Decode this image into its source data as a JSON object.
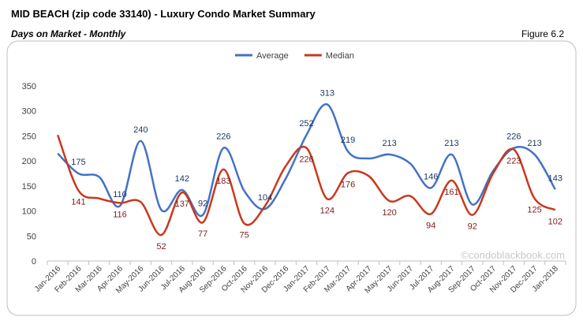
{
  "chart_data": {
    "type": "line",
    "title": "MID BEACH (zip code 33140) - Luxury Condo Market Summary",
    "subtitle": "Days on Market - Monthly",
    "figure_label": "Figure 6.2",
    "watermark": "©condoblackbook.com",
    "categories": [
      "Jan-2016",
      "Feb-2016",
      "Mar-2016",
      "Apr-2016",
      "May-2016",
      "Jun-2016",
      "Jul-2016",
      "Aug-2016",
      "Sep-2016",
      "Oct-2016",
      "Nov-2016",
      "Dec-2016",
      "Jan-2017",
      "Feb-2017",
      "Mar-2017",
      "Apr-2017",
      "May-2017",
      "Jun-2017",
      "Jul-2017",
      "Aug-2017",
      "Sep-2017",
      "Oct-2017",
      "Nov-2017",
      "Dec-2017",
      "Jan-2018"
    ],
    "series": [
      {
        "name": "Average",
        "color": "#4472c4",
        "label_color": "#1f3864",
        "values": [
          215,
          175,
          168,
          110,
          240,
          102,
          142,
          92,
          226,
          140,
          104,
          165,
          252,
          313,
          219,
          205,
          213,
          195,
          146,
          213,
          113,
          180,
          226,
          213,
          143
        ],
        "value_labels": [
          null,
          "175",
          null,
          "110",
          "240",
          null,
          "142",
          "92",
          "226",
          null,
          "104",
          null,
          "252",
          "313",
          "219",
          null,
          "213",
          null,
          "146",
          "213",
          null,
          null,
          "226",
          "213",
          "143"
        ]
      },
      {
        "name": "Median",
        "color": "#c8391e",
        "label_color": "#7b1c1c",
        "values": [
          252,
          141,
          125,
          116,
          118,
          52,
          137,
          77,
          183,
          75,
          110,
          190,
          226,
          124,
          176,
          170,
          120,
          130,
          94,
          161,
          92,
          175,
          223,
          125,
          102
        ],
        "value_labels": [
          null,
          "141",
          null,
          "116",
          null,
          "52",
          "137",
          "77",
          "183",
          "75",
          null,
          null,
          "226",
          "124",
          "176",
          null,
          "120",
          null,
          "94",
          "161",
          "92",
          null,
          "223",
          "125",
          "102"
        ]
      }
    ],
    "ylim": [
      0,
      350
    ],
    "yticks": [
      0,
      50,
      100,
      150,
      200,
      250,
      300,
      350
    ],
    "grid": false,
    "legend": "top"
  }
}
